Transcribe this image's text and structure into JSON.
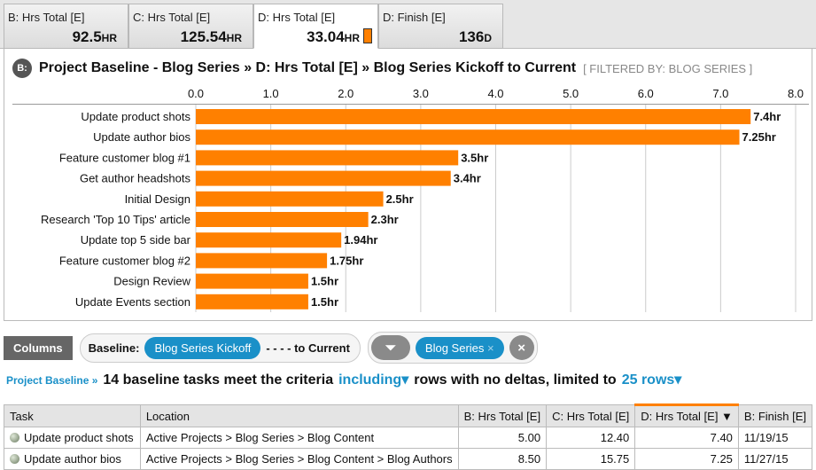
{
  "tabs": [
    {
      "label": "B: Hrs Total [E]",
      "value": "92.5",
      "unit": "HR"
    },
    {
      "label": "C: Hrs Total [E]",
      "value": "125.54",
      "unit": "HR"
    },
    {
      "label": "D: Hrs Total [E]",
      "value": "33.04",
      "unit": "HR",
      "active": true
    },
    {
      "label": "D: Finish [E]",
      "value": "136",
      "unit": "D"
    }
  ],
  "title": {
    "badge": "B:",
    "text": "Project Baseline - Blog Series » D: Hrs Total [E] » Blog Series Kickoff to Current",
    "filter": "[ FILTERED BY: BLOG SERIES ]"
  },
  "chart_data": {
    "type": "bar",
    "orientation": "horizontal",
    "color": "#ff8000",
    "xlim": [
      0,
      8
    ],
    "ticks": [
      "0.0",
      "1.0",
      "2.0",
      "3.0",
      "4.0",
      "5.0",
      "6.0",
      "7.0",
      "8.0"
    ],
    "grid": true,
    "categories": [
      "Update product shots",
      "Update author bios",
      "Feature customer blog #1",
      "Get author headshots",
      "Initial Design",
      "Research 'Top 10 Tips' article",
      "Update top 5 side bar",
      "Feature customer blog #2",
      "Design Review",
      "Update Events section"
    ],
    "values": [
      7.4,
      7.25,
      3.5,
      3.4,
      2.5,
      2.3,
      1.94,
      1.75,
      1.5,
      1.5
    ],
    "labels": [
      "7.4hr",
      "7.25hr",
      "3.5hr",
      "3.4hr",
      "2.5hr",
      "2.3hr",
      "1.94hr",
      "1.75hr",
      "1.5hr",
      "1.5hr"
    ]
  },
  "toolbar": {
    "columns": "Columns",
    "baseline_label": "Baseline:",
    "baseline_value": "Blog Series Kickoff",
    "to_current": "- - - - to Current",
    "filter_value": "Blog Series",
    "filter_remove": "×",
    "clear": "×"
  },
  "criteria": {
    "breadcrumb": "Project Baseline »",
    "count_text": "14 baseline tasks meet the criteria",
    "including": "including▾",
    "middle": "rows with no deltas, limited to",
    "rows": "25 rows▾"
  },
  "table": {
    "headers": [
      "Task",
      "Location",
      "B: Hrs Total [E]",
      "C: Hrs Total [E]",
      "D: Hrs Total [E] ▼",
      "B: Finish [E]"
    ],
    "rows": [
      [
        "Update product shots",
        "Active Projects > Blog Series > Blog Content",
        "5.00",
        "12.40",
        "7.40",
        "11/19/15"
      ],
      [
        "Update author bios",
        "Active Projects > Blog Series > Blog Content > Blog Authors",
        "8.50",
        "15.75",
        "7.25",
        "11/27/15"
      ]
    ]
  }
}
